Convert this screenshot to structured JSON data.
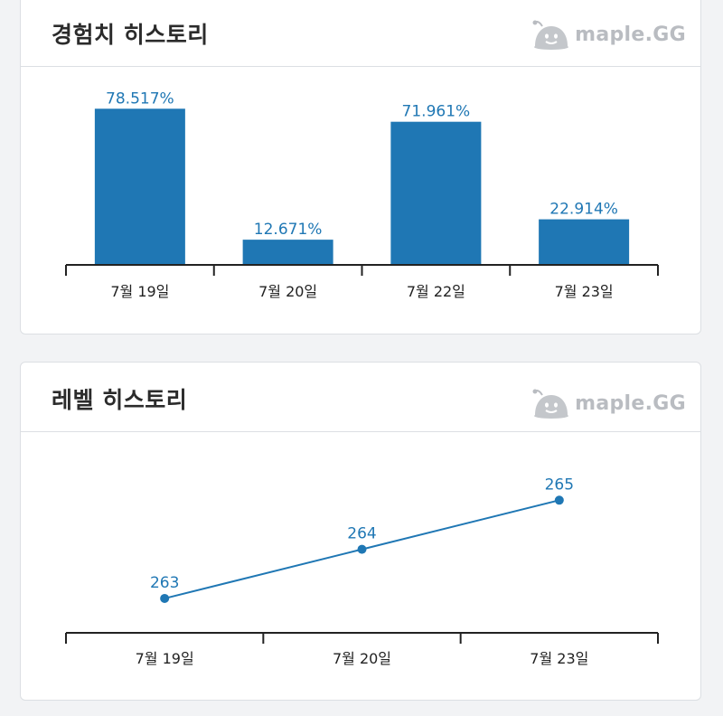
{
  "brand": {
    "name": "maple.GG",
    "mascot_icon": "slime-mascot-icon"
  },
  "colors": {
    "bar": "#1f77b4",
    "line": "#1f77b4",
    "axis": "#222222",
    "label": "#1f77b4"
  },
  "sections": {
    "exp": {
      "title": "경험치 히스토리"
    },
    "level": {
      "title": "레벨 히스토리"
    }
  },
  "chart_data": [
    {
      "type": "bar",
      "title": "경험치 히스토리",
      "categories": [
        "7월 19일",
        "7월 20일",
        "7월 22일",
        "7월 23일"
      ],
      "values": [
        78.517,
        12.671,
        71.961,
        22.914
      ],
      "value_labels": [
        "78.517%",
        "12.671%",
        "71.961%",
        "22.914%"
      ],
      "unit": "%",
      "ylim": [
        0,
        80
      ],
      "grid": false,
      "legend": "none"
    },
    {
      "type": "line",
      "title": "레벨 히스토리",
      "categories": [
        "7월 19일",
        "7월 20일",
        "7월 23일"
      ],
      "values": [
        263,
        264,
        265
      ],
      "value_labels": [
        "263",
        "264",
        "265"
      ],
      "ylim": [
        262.3,
        265.3
      ],
      "grid": false,
      "legend": "none"
    }
  ]
}
